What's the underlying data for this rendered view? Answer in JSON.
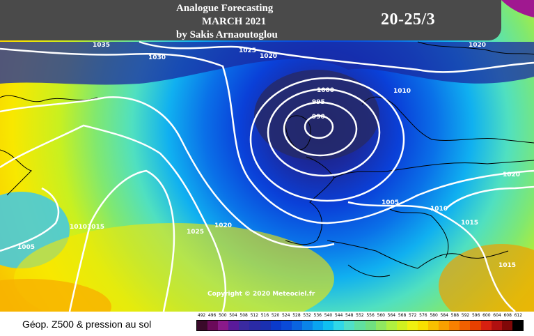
{
  "header": {
    "title_line1": "Analogue Forecasting",
    "title_line2": "MARCH 2021",
    "title_line3": "by Sakis Arnaoutoglou",
    "date_range": "20-25/3"
  },
  "map": {
    "copyright": "Copyright © 2020 Meteociel.fr",
    "isobar_labels": [
      "1035",
      "1030",
      "1025",
      "1020",
      "1020",
      "1010",
      "1000",
      "995",
      "990",
      "1020",
      "1005",
      "1010",
      "1015",
      "1010",
      "1015",
      "1025",
      "1020",
      "1005",
      "1015"
    ]
  },
  "legend": {
    "label": "Géop. Z500 & pression au sol",
    "ticks": [
      "492",
      "496",
      "500",
      "504",
      "508",
      "512",
      "516",
      "520",
      "524",
      "528",
      "532",
      "536",
      "540",
      "544",
      "548",
      "552",
      "556",
      "560",
      "564",
      "568",
      "572",
      "576",
      "580",
      "584",
      "588",
      "592",
      "596",
      "600",
      "604",
      "608",
      "612"
    ],
    "colors": [
      "#3a0a2a",
      "#6b0a5a",
      "#8a1a8a",
      "#5a1a9a",
      "#3a2aa0",
      "#2a2aa5",
      "#1a30b0",
      "#0a3acc",
      "#0a4ad8",
      "#0a64e0",
      "#0a84e8",
      "#0aa4f0",
      "#10c0f0",
      "#30d8e8",
      "#50e0c8",
      "#60e0a0",
      "#70e080",
      "#90e860",
      "#b0f040",
      "#d0f020",
      "#f0f010",
      "#f8e000",
      "#f8c000",
      "#f8a000",
      "#f88000",
      "#f06000",
      "#e84000",
      "#d82010",
      "#b01010",
      "#800808",
      "#000000"
    ]
  }
}
